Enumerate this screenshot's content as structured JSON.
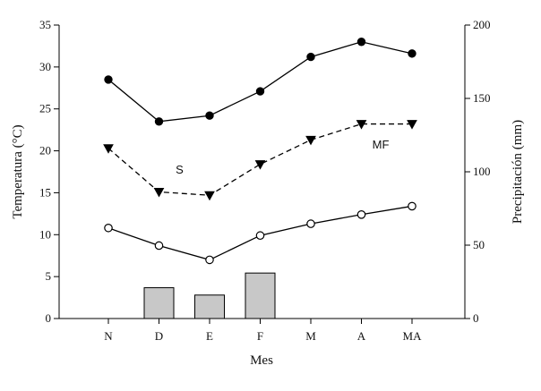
{
  "chart_data": {
    "type": "line",
    "categories": [
      "N",
      "D",
      "E",
      "F",
      "M",
      "A",
      "MA"
    ],
    "xlabel": "Mes",
    "ylabel": "Temperatura (°C)",
    "ylim": [
      0,
      35
    ],
    "yticks": [
      "0",
      "5",
      "10",
      "15",
      "20",
      "25",
      "30",
      "35"
    ],
    "y2label": "Precipitación (mm)",
    "y2lim": [
      0,
      200
    ],
    "y2ticks": [
      "0",
      "50",
      "100",
      "150",
      "200"
    ],
    "grid": false,
    "series": [
      {
        "marker": "filled-circle",
        "line": "solid",
        "axis": "left",
        "values": [
          28.5,
          23.5,
          24.2,
          27.1,
          31.2,
          33.0,
          31.6
        ]
      },
      {
        "marker": "filled-triangle-down",
        "line": "dashed",
        "axis": "left",
        "values": [
          20.3,
          15.1,
          14.7,
          18.4,
          21.3,
          23.2,
          23.2
        ]
      },
      {
        "marker": "open-circle",
        "line": "solid",
        "axis": "left",
        "values": [
          10.8,
          8.7,
          7.0,
          9.9,
          11.3,
          12.4,
          13.4
        ]
      },
      {
        "type": "bar",
        "axis": "right",
        "values": [
          0,
          21,
          16,
          31,
          0,
          0,
          0
        ]
      }
    ],
    "annotations": [
      {
        "text": "S",
        "category": "D",
        "y": 17.8
      },
      {
        "text": "MF",
        "category": "MA",
        "y": 20.8
      }
    ]
  }
}
